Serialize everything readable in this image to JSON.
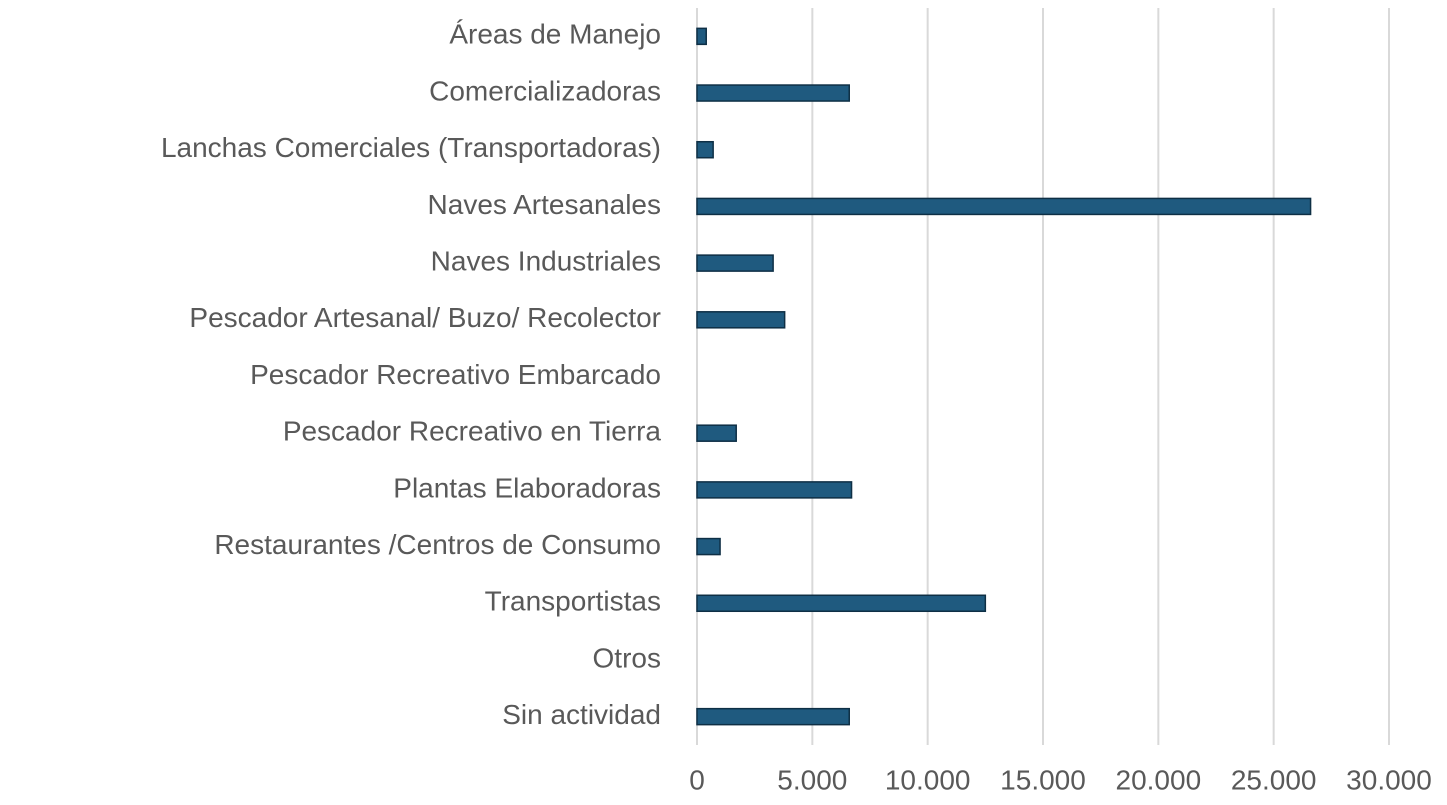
{
  "chart_data": {
    "type": "bar",
    "orientation": "horizontal",
    "categories": [
      "Áreas de Manejo",
      "Comercializadoras",
      "Lanchas Comerciales (Transportadoras)",
      "Naves Artesanales",
      "Naves Industriales",
      "Pescador Artesanal/ Buzo/ Recolector",
      "Pescador Recreativo Embarcado",
      "Pescador Recreativo en Tierra",
      "Plantas Elaboradoras",
      "Restaurantes /Centros de Consumo",
      "Transportistas",
      "Otros",
      "Sin actividad"
    ],
    "values": [
      400,
      6600,
      700,
      26600,
      3300,
      3800,
      0,
      1700,
      6700,
      1000,
      12500,
      0,
      6600
    ],
    "color": "#1f5a7f",
    "xlim": [
      0,
      30000
    ],
    "xticks": [
      0,
      {
        "value": 5000,
        "label": "5.000"
      },
      {
        "value": 10000,
        "label": "10.000"
      },
      {
        "value": 15000,
        "label": "15.000"
      },
      {
        "value": 20000,
        "label": "20.000"
      },
      {
        "value": 25000,
        "label": "25.000"
      },
      {
        "value": 30000,
        "label": "30.000"
      }
    ],
    "grid": true
  }
}
